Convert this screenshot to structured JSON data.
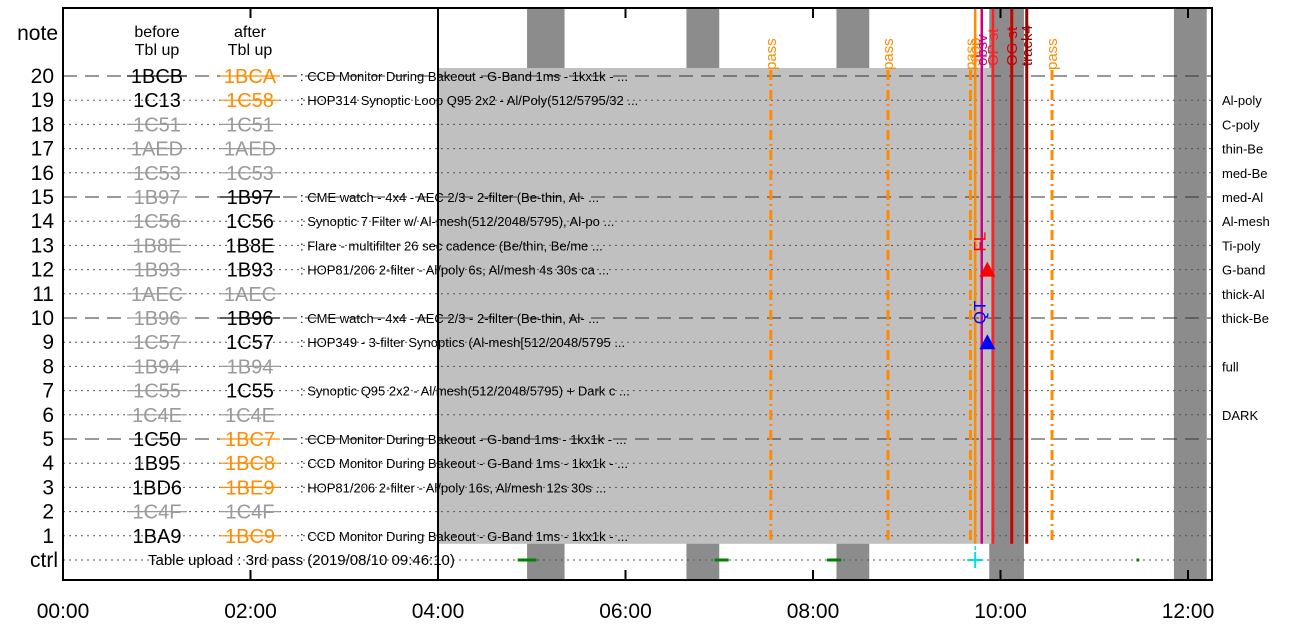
{
  "chart_data": {
    "type": "timeline",
    "headers": {
      "note": "note",
      "before": [
        "before",
        "Tbl up"
      ],
      "after": [
        "after",
        "Tbl up"
      ],
      "ctrl": "ctrl"
    },
    "rows": [
      {
        "row": 20,
        "before": "1BCB",
        "before_style": "black-struck",
        "after": "1BCA",
        "after_style": "orange-struck",
        "desc": ": CCD Monitor During Bakeout - G-Band 1ms - 1kx1k - ...",
        "major": true
      },
      {
        "row": 19,
        "before": "1C13",
        "before_style": "black",
        "after": "1C58",
        "after_style": "orange-struck",
        "desc": ": HOP314 Synoptic Loop Q95 2x2 - Al/Poly(512/5795/32 ...",
        "major": false
      },
      {
        "row": 18,
        "before": "1C51",
        "before_style": "gray-struck",
        "after": "1C51",
        "after_style": "gray-struck",
        "desc": "",
        "major": false
      },
      {
        "row": 17,
        "before": "1AED",
        "before_style": "gray-struck",
        "after": "1AED",
        "after_style": "gray-struck",
        "desc": "",
        "major": false
      },
      {
        "row": 16,
        "before": "1C53",
        "before_style": "gray-struck",
        "after": "1C53",
        "after_style": "gray-struck",
        "desc": "",
        "major": false
      },
      {
        "row": 15,
        "before": "1B97",
        "before_style": "gray-struck",
        "after": "1B97",
        "after_style": "black-struck",
        "desc": ": CME watch - 4x4 - AEC 2/3 - 2-filter (Be-thin, Al- ...",
        "major": true
      },
      {
        "row": 14,
        "before": "1C56",
        "before_style": "gray-struck",
        "after": "1C56",
        "after_style": "black",
        "desc": ": Synoptic 7 Filter w/ Al-mesh(512/2048/5795), Al-po ...",
        "major": false
      },
      {
        "row": 13,
        "before": "1B8E",
        "before_style": "gray-struck",
        "after": "1B8E",
        "after_style": "black",
        "desc": ": Flare - multifilter 26 sec cadence (Be/thin, Be/me ...",
        "major": false
      },
      {
        "row": 12,
        "before": "1B93",
        "before_style": "gray-struck",
        "after": "1B93",
        "after_style": "black",
        "desc": ": HOP81/206 2-filter - Al/poly 6s, Al/mesh 4s 30s ca ...",
        "major": false
      },
      {
        "row": 11,
        "before": "1AEC",
        "before_style": "gray-struck",
        "after": "1AEC",
        "after_style": "gray-struck",
        "desc": "",
        "major": false
      },
      {
        "row": 10,
        "before": "1B96",
        "before_style": "gray-struck",
        "after": "1B96",
        "after_style": "black-struck",
        "desc": ": CME watch - 4x4 - AEC 2/3 - 2-filter (Be-thin, Al- ...",
        "major": true
      },
      {
        "row": 9,
        "before": "1C57",
        "before_style": "gray-struck",
        "after": "1C57",
        "after_style": "black",
        "desc": ": HOP349 - 3-filter Synoptics (Al-mesh[512/2048/5795 ...",
        "major": false
      },
      {
        "row": 8,
        "before": "1B94",
        "before_style": "gray-struck",
        "after": "1B94",
        "after_style": "gray-struck",
        "desc": "",
        "major": false
      },
      {
        "row": 7,
        "before": "1C55",
        "before_style": "gray-struck",
        "after": "1C55",
        "after_style": "black",
        "desc": ": Synoptic Q95 2x2 - Al/mesh(512/2048/5795) + Dark c ...",
        "major": false
      },
      {
        "row": 6,
        "before": "1C4E",
        "before_style": "gray-struck",
        "after": "1C4E",
        "after_style": "gray-struck",
        "desc": "",
        "major": false
      },
      {
        "row": 5,
        "before": "1C50",
        "before_style": "black",
        "after": "1BC7",
        "after_style": "orange-struck",
        "desc": ": CCD Monitor During Bakeout - G-band 1ms - 1kx1k - ...",
        "major": true
      },
      {
        "row": 4,
        "before": "1B95",
        "before_style": "black",
        "after": "1BC8",
        "after_style": "orange-struck",
        "desc": ": CCD Monitor During Bakeout - G-Band 1ms - 1kx1k - ...",
        "major": false
      },
      {
        "row": 3,
        "before": "1BD6",
        "before_style": "black",
        "after": "1BE9",
        "after_style": "orange-struck",
        "desc": ": HOP81/206 2-filter - Al/poly 16s, Al/mesh 12s 30s ...",
        "major": false
      },
      {
        "row": 2,
        "before": "1C4F",
        "before_style": "gray-struck",
        "after": "1C4F",
        "after_style": "gray-struck",
        "desc": "",
        "major": false
      },
      {
        "row": 1,
        "before": "1BA9",
        "before_style": "black",
        "after": "1BC9",
        "after_style": "orange-struck",
        "desc": ": CCD Monitor During Bakeout - G-Band 1ms - 1kx1k - ...",
        "major": false
      }
    ],
    "filters": [
      {
        "row": 19,
        "label": "Al-poly"
      },
      {
        "row": 18,
        "label": "C-poly"
      },
      {
        "row": 17,
        "label": "thin-Be"
      },
      {
        "row": 16,
        "label": "med-Be"
      },
      {
        "row": 15,
        "label": "med-Al"
      },
      {
        "row": 14,
        "label": "Al-mesh"
      },
      {
        "row": 13,
        "label": "Ti-poly"
      },
      {
        "row": 12,
        "label": "G-band"
      },
      {
        "row": 11,
        "label": "thick-Al"
      },
      {
        "row": 10,
        "label": "thick-Be"
      },
      {
        "row": 8,
        "label": "full"
      },
      {
        "row": 6,
        "label": "DARK"
      }
    ],
    "x_ticks": [
      "00:00",
      "02:00",
      "04:00",
      "06:00",
      "08:00",
      "10:00",
      "12:00"
    ],
    "x_range_hours": [
      0,
      12.2
    ],
    "shaded_region_hours": [
      4.0,
      9.9
    ],
    "gray_bands_hours": [
      [
        4.95,
        5.35
      ],
      [
        6.65,
        7.0
      ],
      [
        8.25,
        8.6
      ],
      [
        9.88,
        10.25
      ],
      [
        11.85,
        12.2
      ]
    ],
    "pass_lines": [
      {
        "hour": 7.55,
        "label": "pass"
      },
      {
        "hour": 8.8,
        "label": "pass"
      },
      {
        "hour": 9.68,
        "label": "pass"
      },
      {
        "hour": 10.55,
        "label": "pass"
      }
    ],
    "event_lines": [
      {
        "hour": 9.73,
        "label": "stop",
        "color": "#ff8c00"
      },
      {
        "hour": 9.8,
        "label": "obsv",
        "color": "#cc0088"
      },
      {
        "hour": 9.92,
        "label": "OP st",
        "color": "#ff2020"
      },
      {
        "hour": 10.12,
        "label": "OG st",
        "color": "#cc0000"
      },
      {
        "hour": 10.28,
        "label": "track4",
        "color": "#990000"
      }
    ],
    "markers": [
      {
        "hour": 9.86,
        "row": 12,
        "label": "FL",
        "color": "#ff0000"
      },
      {
        "hour": 9.86,
        "row": 9,
        "label": "QT",
        "color": "#0000ff"
      }
    ],
    "ctrl_text": "Table upload : 3rd pass (2019/08/10 09:46:10)",
    "ctrl_segments_hours": [
      [
        4.85,
        5.05
      ],
      [
        6.95,
        7.1
      ],
      [
        8.15,
        8.3
      ],
      [
        11.45,
        11.48
      ]
    ],
    "ctrl_cross_hour": 9.73,
    "colors": {
      "shade": "#c0c0c0",
      "gray_band": "#8c8c8c",
      "orange": "#ff8c00",
      "gray_text": "#9a9a9a",
      "ctrl_green": "#008000",
      "cyan": "#00e0e0"
    }
  }
}
